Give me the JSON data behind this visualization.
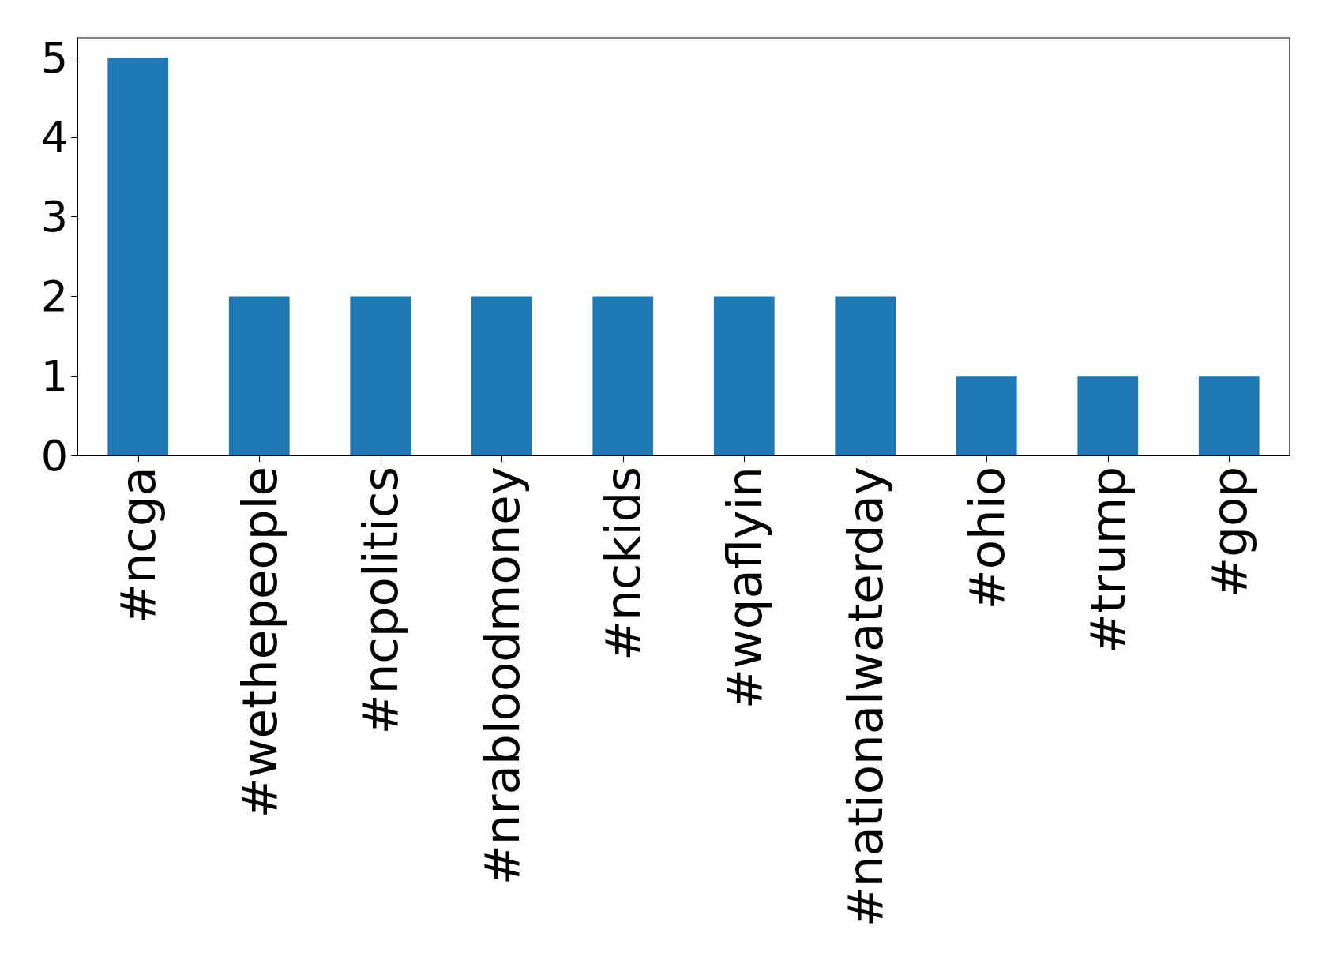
{
  "chart_data": {
    "type": "bar",
    "categories": [
      "#ncga",
      "#wethepeople",
      "#ncpolitics",
      "#nrabloodmoney",
      "#nckids",
      "#wqaflyin",
      "#nationalwaterday",
      "#ohio",
      "#trump",
      "#gop"
    ],
    "values": [
      5,
      2,
      2,
      2,
      2,
      2,
      2,
      1,
      1,
      1
    ],
    "color": "#1f77b4",
    "ylim": [
      0,
      5.25
    ],
    "yticks": [
      0,
      1,
      2,
      3,
      4,
      5
    ],
    "grid": false
  }
}
